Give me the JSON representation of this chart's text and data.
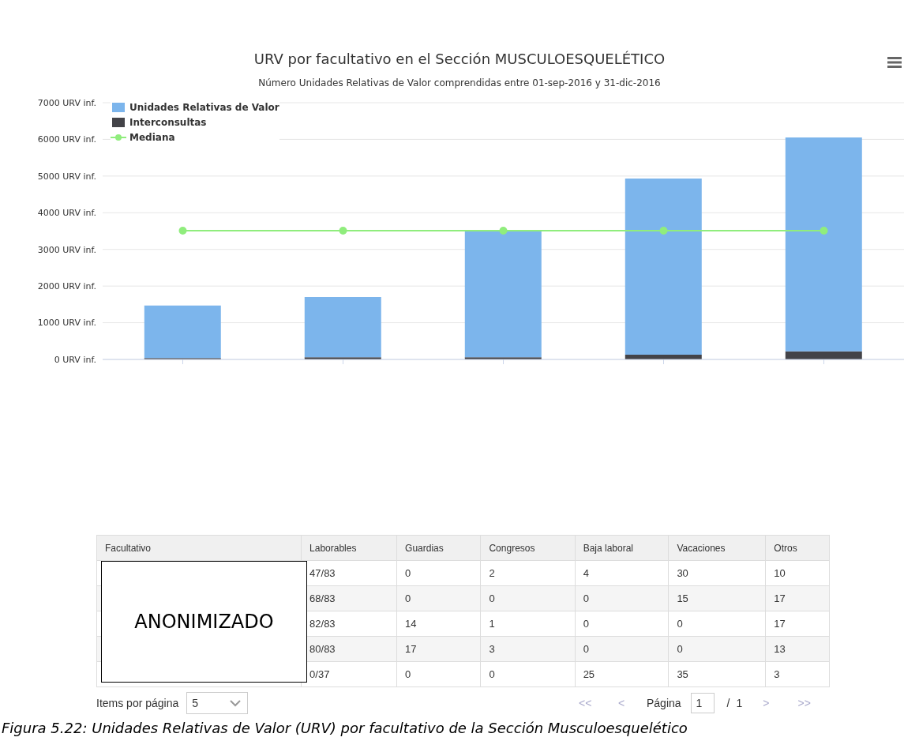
{
  "chart_data": [
    {
      "type": "bar",
      "title": "URV por facultativo en el Sección MUSCULOESQUELÉTICO",
      "subtitle": "Número Unidades Relativas de Valor comprendidas entre 01-sep-2016 y 31-dic-2016",
      "categories": [
        null,
        null,
        null,
        null,
        null
      ],
      "stacked": true,
      "series": [
        {
          "name": "Interconsultas",
          "color": "#434348",
          "values": [
            40,
            60,
            60,
            130,
            220
          ]
        },
        {
          "name": "Unidades Relativas de Valor",
          "color": "#7cb5ec",
          "values": [
            1430,
            1640,
            3450,
            4800,
            5830
          ]
        },
        {
          "name": "Mediana",
          "type": "line",
          "color": "#90ed7d",
          "values": [
            3510,
            3510,
            3510,
            3510,
            3510
          ]
        }
      ],
      "ylim": [
        0,
        7000
      ],
      "yticks": [
        {
          "value": 0,
          "label": "0 URV inf."
        },
        {
          "value": 1000,
          "label": "1000 URV inf."
        },
        {
          "value": 2000,
          "label": "2000 URV inf."
        },
        {
          "value": 3000,
          "label": "3000 URV inf."
        },
        {
          "value": 4000,
          "label": "4000 URV inf."
        },
        {
          "value": 5000,
          "label": "5000 URV inf."
        },
        {
          "value": 6000,
          "label": "6000 URV inf."
        },
        {
          "value": 7000,
          "label": "7000 URV inf."
        }
      ],
      "grid": "y",
      "legend": "top left",
      "marker": "circle"
    },
    {
      "type": "other",
      "categories": [
        "Facultativo",
        "Laborables",
        "Guardias",
        "Congresos",
        "Baja laboral",
        "Vacaciones",
        "Otros"
      ],
      "cell_labels": [
        [
          null,
          "47/83",
          "0",
          "2",
          "4",
          "30",
          "10"
        ],
        [
          null,
          "68/83",
          "0",
          "0",
          "0",
          "15",
          "17"
        ],
        [
          null,
          "82/83",
          "14",
          "1",
          "0",
          "0",
          "17"
        ],
        [
          null,
          "80/83",
          "17",
          "3",
          "0",
          "0",
          "13"
        ],
        [
          null,
          "0/37",
          "0",
          "0",
          "25",
          "35",
          "3"
        ]
      ],
      "annotations": [
        "ANONIMIZADO",
        "Items por página",
        "5",
        "<<",
        "<",
        "Página",
        "1",
        "/",
        "1",
        ">",
        ">>",
        "Figura 5.22: Unidades Relativas de Valor (URV) por facultativo de la Sección Musculoesquelético"
      ]
    }
  ]
}
